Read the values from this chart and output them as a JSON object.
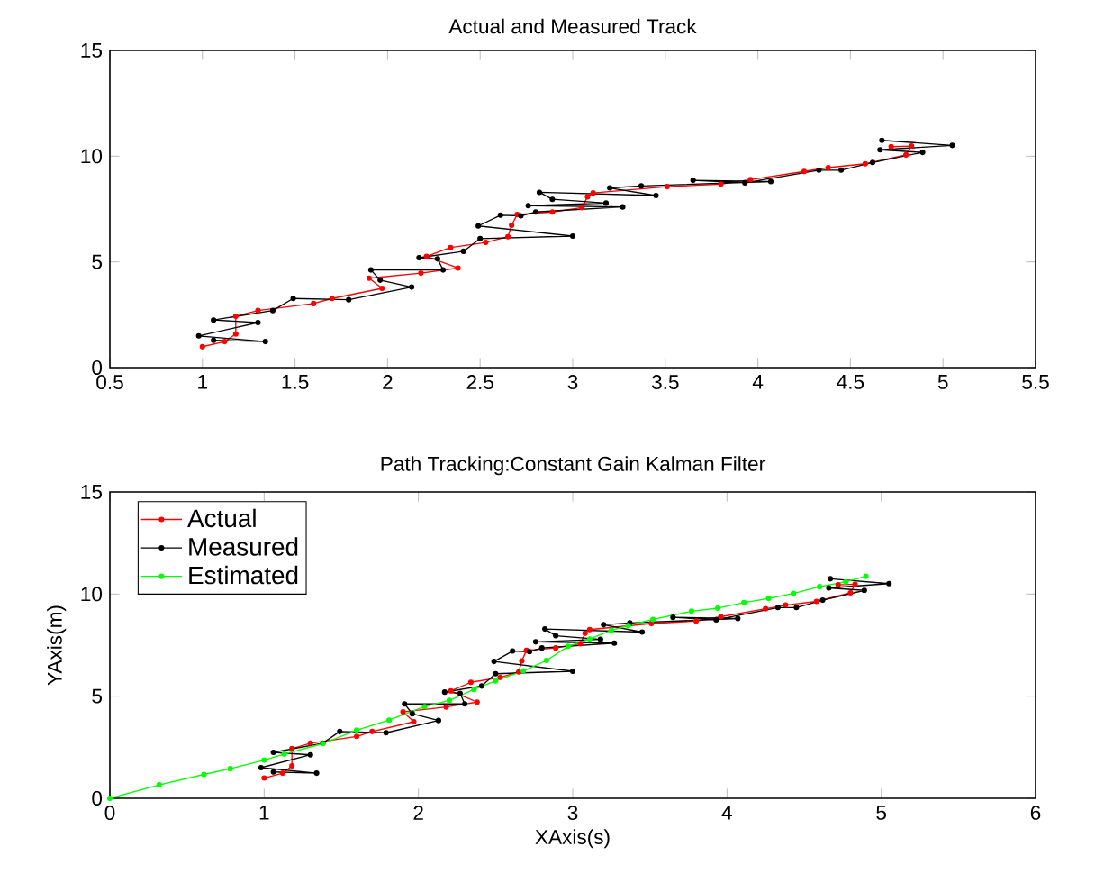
{
  "chart_data": [
    {
      "type": "line",
      "title": "Actual and Measured Track",
      "xlim": [
        0.5,
        5.5
      ],
      "ylim": [
        0,
        15
      ],
      "xticks": [
        0.5,
        1,
        1.5,
        2,
        2.5,
        3,
        3.5,
        4,
        4.5,
        5,
        5.5
      ],
      "yticks": [
        0,
        5,
        10,
        15
      ],
      "grid": false,
      "legend": false,
      "marker": "circle",
      "line_style": "solid",
      "series": [
        {
          "color": "#ff0000",
          "x": [
            1.0,
            1.12,
            1.18,
            1.18,
            1.3,
            1.6,
            1.7,
            1.97,
            1.9,
            2.18,
            2.38,
            2.21,
            2.34,
            2.53,
            2.65,
            2.67,
            2.7,
            2.89,
            3.05,
            3.08,
            3.11,
            3.51,
            3.8,
            3.96,
            4.25,
            4.38,
            4.58,
            4.8,
            4.83,
            4.72
          ],
          "values": [
            0.99,
            1.23,
            1.59,
            2.43,
            2.7,
            3.03,
            3.27,
            3.75,
            4.23,
            4.47,
            4.71,
            5.26,
            5.68,
            5.92,
            6.19,
            6.73,
            7.24,
            7.36,
            7.57,
            8.08,
            8.26,
            8.56,
            8.68,
            8.89,
            9.28,
            9.46,
            9.64,
            10.06,
            10.48,
            10.45
          ]
        },
        {
          "color": "#000000",
          "x": [
            1.06,
            1.34,
            0.98,
            1.3,
            1.06,
            1.38,
            1.49,
            1.79,
            2.13,
            1.96,
            1.91,
            2.3,
            2.27,
            2.17,
            2.41,
            2.5,
            3.0,
            2.49,
            2.61,
            2.72,
            2.8,
            3.27,
            2.76,
            3.18,
            2.89,
            2.82,
            3.45,
            3.2,
            3.37,
            4.07,
            3.65,
            3.93,
            4.33,
            4.45,
            4.62,
            4.89,
            4.66,
            5.05,
            4.67
          ],
          "values": [
            1.29,
            1.23,
            1.5,
            2.13,
            2.25,
            2.7,
            3.27,
            3.21,
            3.81,
            4.14,
            4.62,
            4.62,
            5.14,
            5.2,
            5.5,
            6.1,
            6.22,
            6.7,
            7.21,
            7.18,
            7.36,
            7.6,
            7.66,
            7.78,
            7.96,
            8.29,
            8.14,
            8.5,
            8.59,
            8.8,
            8.86,
            8.74,
            9.34,
            9.34,
            9.7,
            10.18,
            10.3,
            10.51,
            10.75
          ]
        }
      ]
    },
    {
      "type": "line",
      "title": "Path Tracking:Constant Gain Kalman Filter",
      "xlabel": "XAxis(s)",
      "ylabel": "YAxis(m)",
      "xlim": [
        0,
        6
      ],
      "ylim": [
        0,
        15
      ],
      "xticks": [
        0,
        1,
        2,
        3,
        4,
        5,
        6
      ],
      "yticks": [
        0,
        5,
        10,
        15
      ],
      "grid": false,
      "legend": "top left",
      "marker": "circle",
      "line_style": "solid",
      "series": [
        {
          "name": "Actual",
          "color": "#ff0000",
          "x": [
            1.0,
            1.12,
            1.18,
            1.18,
            1.3,
            1.6,
            1.7,
            1.97,
            1.9,
            2.18,
            2.38,
            2.21,
            2.34,
            2.53,
            2.65,
            2.67,
            2.7,
            2.89,
            3.05,
            3.08,
            3.11,
            3.51,
            3.8,
            3.96,
            4.25,
            4.38,
            4.58,
            4.8,
            4.83,
            4.72
          ],
          "values": [
            0.99,
            1.23,
            1.59,
            2.43,
            2.7,
            3.03,
            3.27,
            3.75,
            4.23,
            4.47,
            4.71,
            5.26,
            5.68,
            5.92,
            6.19,
            6.73,
            7.24,
            7.36,
            7.57,
            8.08,
            8.26,
            8.56,
            8.68,
            8.89,
            9.28,
            9.46,
            9.64,
            10.06,
            10.48,
            10.45
          ]
        },
        {
          "name": "Measured",
          "color": "#000000",
          "x": [
            1.06,
            1.34,
            0.98,
            1.3,
            1.06,
            1.38,
            1.49,
            1.79,
            2.13,
            1.96,
            1.91,
            2.3,
            2.27,
            2.17,
            2.41,
            2.5,
            3.0,
            2.49,
            2.61,
            2.72,
            2.8,
            3.27,
            2.76,
            3.18,
            2.89,
            2.82,
            3.45,
            3.2,
            3.37,
            4.07,
            3.65,
            3.93,
            4.33,
            4.45,
            4.62,
            4.89,
            4.66,
            5.05,
            4.67
          ],
          "values": [
            1.29,
            1.23,
            1.5,
            2.13,
            2.25,
            2.7,
            3.27,
            3.21,
            3.81,
            4.14,
            4.62,
            4.62,
            5.14,
            5.2,
            5.5,
            6.1,
            6.22,
            6.7,
            7.21,
            7.18,
            7.36,
            7.6,
            7.66,
            7.78,
            7.96,
            8.29,
            8.14,
            8.5,
            8.59,
            8.8,
            8.86,
            8.74,
            9.34,
            9.34,
            9.7,
            10.18,
            10.3,
            10.51,
            10.75
          ]
        },
        {
          "name": "Estimated",
          "color": "#00ff00",
          "x": [
            0,
            0.32,
            0.61,
            0.78,
            1.0,
            1.13,
            1.38,
            1.6,
            1.81,
            2.04,
            2.2,
            2.36,
            2.5,
            2.68,
            2.83,
            2.97,
            3.11,
            3.25,
            3.36,
            3.52,
            3.77,
            3.94,
            4.11,
            4.27,
            4.43,
            4.6,
            4.77,
            4.9
          ],
          "values": [
            0,
            0.66,
            1.17,
            1.45,
            1.87,
            2.17,
            2.68,
            3.34,
            3.83,
            4.49,
            4.79,
            5.33,
            5.75,
            6.24,
            6.75,
            7.44,
            7.8,
            8.22,
            8.46,
            8.76,
            9.16,
            9.31,
            9.58,
            9.79,
            10.03,
            10.36,
            10.6,
            10.87
          ]
        }
      ]
    }
  ]
}
